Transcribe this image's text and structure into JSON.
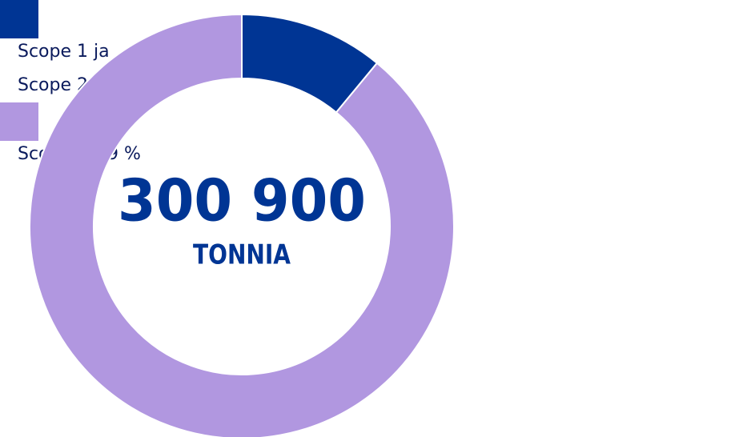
{
  "chart_data": {
    "type": "donut",
    "center_label": "300 900",
    "center_unit": "TONNIA",
    "categories": [
      "Scope 1 ja Scope 2",
      "Scope 3"
    ],
    "values": [
      11,
      89
    ],
    "value_labels": [
      "11 %",
      "89 %"
    ],
    "colors": [
      "#003594",
      "#b197e0"
    ],
    "legend": "right"
  }
}
